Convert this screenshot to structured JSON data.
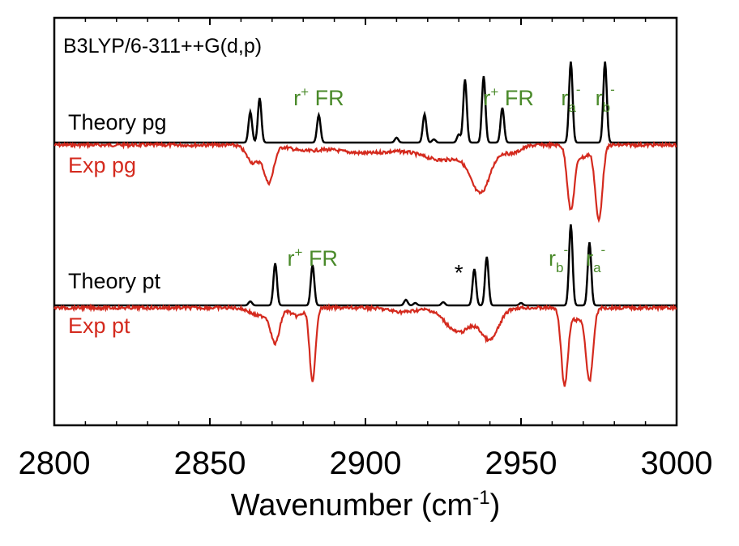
{
  "chart_data": {
    "type": "line",
    "title": "",
    "method_label": "B3LYP/6-311++G(d,p)",
    "xlabel": "Wavenumber (cm",
    "xlabel_sup": "-1",
    "xlabel_close": ")",
    "ylabel": "",
    "xlim": [
      2800,
      3000
    ],
    "ticks": [
      2800,
      2850,
      2900,
      2950,
      3000
    ],
    "colors": {
      "theory": "#000000",
      "experiment": "#d42a1e",
      "annotation": "#4a8a2a"
    },
    "panels": [
      {
        "id": "pg",
        "theory_label": "Theory pg",
        "exp_label": "Exp pg",
        "theory_sticks": [
          {
            "x": 2863,
            "h": 0.38
          },
          {
            "x": 2866,
            "h": 0.55
          },
          {
            "x": 2885,
            "h": 0.34
          },
          {
            "x": 2910,
            "h": 0.06
          },
          {
            "x": 2919,
            "h": 0.35
          },
          {
            "x": 2922,
            "h": 0.04
          },
          {
            "x": 2930,
            "h": 0.1
          },
          {
            "x": 2932,
            "h": 0.78
          },
          {
            "x": 2938,
            "h": 0.82
          },
          {
            "x": 2944,
            "h": 0.43
          },
          {
            "x": 2966,
            "h": 1.0
          },
          {
            "x": 2977,
            "h": 1.0
          }
        ],
        "exp_peaks": [
          {
            "x": 2864,
            "d": 0.22,
            "w": 3.0
          },
          {
            "x": 2869,
            "d": 0.45,
            "w": 2.2
          },
          {
            "x": 2880,
            "d": 0.06,
            "w": 6.0
          },
          {
            "x": 2900,
            "d": 0.1,
            "w": 14.0
          },
          {
            "x": 2925,
            "d": 0.18,
            "w": 10.0
          },
          {
            "x": 2937,
            "d": 0.55,
            "w": 4.5
          },
          {
            "x": 2947,
            "d": 0.1,
            "w": 4.0
          },
          {
            "x": 2966,
            "d": 0.78,
            "w": 1.6
          },
          {
            "x": 2975,
            "d": 0.92,
            "w": 1.6
          },
          {
            "x": 2970,
            "d": 0.15,
            "w": 3.0
          }
        ],
        "annotations": [
          {
            "main": "r",
            "sup": "+",
            "rest": " FR",
            "x": 2885
          },
          {
            "main": "r",
            "sup": "+",
            "rest": " FR",
            "x": 2946
          },
          {
            "main": "r",
            "sub": "a",
            "sup": "-",
            "x": 2966
          },
          {
            "main": "r",
            "sub": "b",
            "sup": "-",
            "x": 2977
          }
        ]
      },
      {
        "id": "pt",
        "theory_label": "Theory pt",
        "exp_label": "Exp pt",
        "theory_sticks": [
          {
            "x": 2863,
            "h": 0.05
          },
          {
            "x": 2871,
            "h": 0.52
          },
          {
            "x": 2883,
            "h": 0.5
          },
          {
            "x": 2913,
            "h": 0.07
          },
          {
            "x": 2916,
            "h": 0.03
          },
          {
            "x": 2925,
            "h": 0.04
          },
          {
            "x": 2935,
            "h": 0.45
          },
          {
            "x": 2939,
            "h": 0.6
          },
          {
            "x": 2950,
            "h": 0.03
          },
          {
            "x": 2966,
            "h": 1.0
          },
          {
            "x": 2972,
            "h": 0.78
          }
        ],
        "exp_peaks": [
          {
            "x": 2866,
            "d": 0.1,
            "w": 4.0
          },
          {
            "x": 2871,
            "d": 0.42,
            "w": 2.0
          },
          {
            "x": 2883,
            "d": 0.92,
            "w": 1.3
          },
          {
            "x": 2878,
            "d": 0.1,
            "w": 3.0
          },
          {
            "x": 2930,
            "d": 0.3,
            "w": 6.0
          },
          {
            "x": 2940,
            "d": 0.38,
            "w": 4.0
          },
          {
            "x": 2912,
            "d": 0.05,
            "w": 6.0
          },
          {
            "x": 2964,
            "d": 0.95,
            "w": 1.5
          },
          {
            "x": 2972,
            "d": 0.9,
            "w": 1.6
          },
          {
            "x": 2968,
            "d": 0.15,
            "w": 2.5
          }
        ],
        "annotations": [
          {
            "main": "r",
            "sup": "+",
            "rest": " FR",
            "x": 2883
          },
          {
            "main": "r",
            "sub": "b",
            "sup": "-",
            "x": 2962
          },
          {
            "main": "r",
            "sub": "a",
            "sup": "-",
            "x": 2974
          }
        ],
        "star": {
          "text": "*",
          "x": 2930
        }
      }
    ]
  }
}
